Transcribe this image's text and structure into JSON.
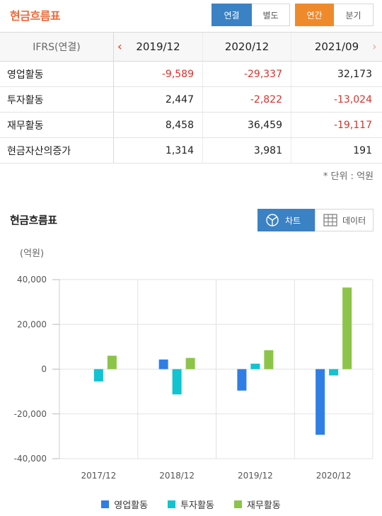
{
  "header": {
    "title": "현금흐름표",
    "consolidation_tabs": [
      "연결",
      "별도"
    ],
    "period_tabs": [
      "연간",
      "분기"
    ]
  },
  "table": {
    "columns": [
      "IFRS(연결)",
      "2019/12",
      "2020/12",
      "2021/09"
    ],
    "rows": [
      {
        "label": "영업활동",
        "values": [
          "-9,589",
          "-29,337",
          "32,173"
        ]
      },
      {
        "label": "투자활동",
        "values": [
          "2,447",
          "-2,822",
          "-13,024"
        ]
      },
      {
        "label": "재무활동",
        "values": [
          "8,458",
          "36,459",
          "-19,117"
        ]
      },
      {
        "label": "현금자산의증가",
        "values": [
          "1,314",
          "3,981",
          "191"
        ]
      }
    ],
    "unit_note": "* 단위 : 억원"
  },
  "chart_section": {
    "title": "현금흐름표",
    "chart_toggle_label": "차트",
    "data_toggle_label": "데이터"
  },
  "chart_data": {
    "type": "bar",
    "title": "",
    "ylabel": "(억원)",
    "xlabel": "",
    "ylim": [
      -40000,
      40000
    ],
    "yticks": [
      "40,000",
      "20,000",
      "0",
      "-20,000",
      "-40,000"
    ],
    "grid": true,
    "legend_position": "bottom",
    "categories": [
      "2017/12",
      "2018/12",
      "2019/12",
      "2020/12"
    ],
    "series": [
      {
        "name": "영업활동",
        "color": "#2f7ee6",
        "values": [
          0,
          4300,
          -9589,
          -29337
        ]
      },
      {
        "name": "투자활동",
        "color": "#12c3d0",
        "values": [
          -5500,
          -11300,
          2447,
          -2822
        ]
      },
      {
        "name": "재무활동",
        "color": "#8cc44a",
        "values": [
          6000,
          5000,
          8458,
          36459
        ]
      }
    ]
  },
  "colors": {
    "accent_orange": "#ee6a3a",
    "active_blue": "#3b82c4",
    "period_active": "#ef8a2c",
    "negative_red": "#d9322d"
  }
}
